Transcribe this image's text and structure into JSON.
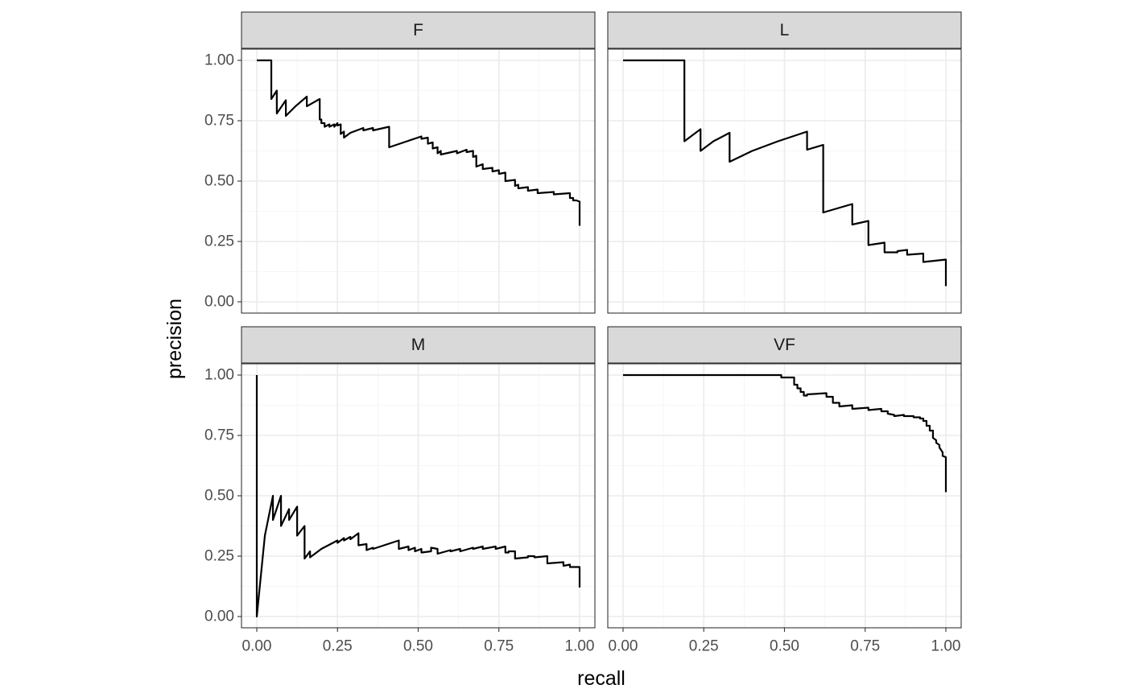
{
  "chart_data": {
    "type": "line",
    "xlabel": "recall",
    "ylabel": "precision",
    "xlim": [
      0,
      1
    ],
    "ylim": [
      0,
      1
    ],
    "x_ticks": [
      "0.00",
      "0.25",
      "0.50",
      "0.75",
      "1.00"
    ],
    "y_ticks": [
      "0.00",
      "0.25",
      "0.50",
      "0.75",
      "1.00"
    ],
    "grid": true,
    "facets": [
      {
        "label": "F",
        "points": [
          [
            0.0,
            1.0
          ],
          [
            0.045,
            1.0
          ],
          [
            0.045,
            0.84
          ],
          [
            0.062,
            0.875
          ],
          [
            0.062,
            0.78
          ],
          [
            0.09,
            0.835
          ],
          [
            0.09,
            0.77
          ],
          [
            0.12,
            0.81
          ],
          [
            0.155,
            0.85
          ],
          [
            0.155,
            0.81
          ],
          [
            0.195,
            0.84
          ],
          [
            0.195,
            0.755
          ],
          [
            0.2,
            0.755
          ],
          [
            0.2,
            0.74
          ],
          [
            0.21,
            0.74
          ],
          [
            0.21,
            0.725
          ],
          [
            0.225,
            0.735
          ],
          [
            0.225,
            0.725
          ],
          [
            0.24,
            0.735
          ],
          [
            0.24,
            0.725
          ],
          [
            0.25,
            0.74
          ],
          [
            0.25,
            0.73
          ],
          [
            0.26,
            0.735
          ],
          [
            0.26,
            0.695
          ],
          [
            0.27,
            0.705
          ],
          [
            0.27,
            0.68
          ],
          [
            0.29,
            0.7
          ],
          [
            0.33,
            0.72
          ],
          [
            0.33,
            0.71
          ],
          [
            0.36,
            0.72
          ],
          [
            0.36,
            0.71
          ],
          [
            0.41,
            0.725
          ],
          [
            0.41,
            0.64
          ],
          [
            0.51,
            0.685
          ],
          [
            0.51,
            0.675
          ],
          [
            0.53,
            0.68
          ],
          [
            0.53,
            0.655
          ],
          [
            0.545,
            0.66
          ],
          [
            0.545,
            0.635
          ],
          [
            0.56,
            0.64
          ],
          [
            0.56,
            0.615
          ],
          [
            0.57,
            0.625
          ],
          [
            0.57,
            0.61
          ],
          [
            0.62,
            0.625
          ],
          [
            0.62,
            0.615
          ],
          [
            0.65,
            0.63
          ],
          [
            0.65,
            0.62
          ],
          [
            0.67,
            0.625
          ],
          [
            0.67,
            0.6
          ],
          [
            0.68,
            0.605
          ],
          [
            0.68,
            0.56
          ],
          [
            0.7,
            0.57
          ],
          [
            0.7,
            0.55
          ],
          [
            0.73,
            0.555
          ],
          [
            0.73,
            0.54
          ],
          [
            0.75,
            0.545
          ],
          [
            0.75,
            0.53
          ],
          [
            0.77,
            0.535
          ],
          [
            0.77,
            0.5
          ],
          [
            0.8,
            0.505
          ],
          [
            0.8,
            0.48
          ],
          [
            0.81,
            0.485
          ],
          [
            0.81,
            0.47
          ],
          [
            0.84,
            0.475
          ],
          [
            0.84,
            0.46
          ],
          [
            0.87,
            0.465
          ],
          [
            0.87,
            0.45
          ],
          [
            0.92,
            0.455
          ],
          [
            0.92,
            0.445
          ],
          [
            0.97,
            0.45
          ],
          [
            0.97,
            0.43
          ],
          [
            0.98,
            0.43
          ],
          [
            0.98,
            0.42
          ],
          [
            0.99,
            0.42
          ],
          [
            1.0,
            0.415
          ],
          [
            1.0,
            0.315
          ]
        ]
      },
      {
        "label": "L",
        "points": [
          [
            0.0,
            1.0
          ],
          [
            0.19,
            1.0
          ],
          [
            0.19,
            0.665
          ],
          [
            0.24,
            0.715
          ],
          [
            0.24,
            0.625
          ],
          [
            0.28,
            0.665
          ],
          [
            0.33,
            0.7
          ],
          [
            0.33,
            0.58
          ],
          [
            0.4,
            0.625
          ],
          [
            0.48,
            0.665
          ],
          [
            0.57,
            0.705
          ],
          [
            0.57,
            0.63
          ],
          [
            0.62,
            0.65
          ],
          [
            0.62,
            0.37
          ],
          [
            0.71,
            0.405
          ],
          [
            0.71,
            0.32
          ],
          [
            0.76,
            0.335
          ],
          [
            0.76,
            0.235
          ],
          [
            0.81,
            0.245
          ],
          [
            0.81,
            0.205
          ],
          [
            0.85,
            0.205
          ],
          [
            0.85,
            0.21
          ],
          [
            0.88,
            0.215
          ],
          [
            0.88,
            0.195
          ],
          [
            0.93,
            0.2
          ],
          [
            0.93,
            0.165
          ],
          [
            1.0,
            0.175
          ],
          [
            1.0,
            0.065
          ]
        ]
      },
      {
        "label": "M",
        "points": [
          [
            0.0,
            1.0
          ],
          [
            0.0,
            0.0
          ],
          [
            0.025,
            0.335
          ],
          [
            0.05,
            0.5
          ],
          [
            0.05,
            0.4
          ],
          [
            0.075,
            0.5
          ],
          [
            0.075,
            0.375
          ],
          [
            0.1,
            0.445
          ],
          [
            0.1,
            0.4
          ],
          [
            0.125,
            0.455
          ],
          [
            0.125,
            0.335
          ],
          [
            0.148,
            0.375
          ],
          [
            0.148,
            0.24
          ],
          [
            0.165,
            0.27
          ],
          [
            0.165,
            0.245
          ],
          [
            0.2,
            0.28
          ],
          [
            0.25,
            0.315
          ],
          [
            0.25,
            0.305
          ],
          [
            0.27,
            0.325
          ],
          [
            0.27,
            0.315
          ],
          [
            0.29,
            0.33
          ],
          [
            0.29,
            0.32
          ],
          [
            0.315,
            0.345
          ],
          [
            0.315,
            0.295
          ],
          [
            0.34,
            0.3
          ],
          [
            0.34,
            0.275
          ],
          [
            0.36,
            0.285
          ],
          [
            0.36,
            0.28
          ],
          [
            0.44,
            0.315
          ],
          [
            0.44,
            0.28
          ],
          [
            0.47,
            0.29
          ],
          [
            0.47,
            0.275
          ],
          [
            0.49,
            0.285
          ],
          [
            0.49,
            0.27
          ],
          [
            0.51,
            0.28
          ],
          [
            0.51,
            0.265
          ],
          [
            0.54,
            0.27
          ],
          [
            0.54,
            0.285
          ],
          [
            0.56,
            0.28
          ],
          [
            0.56,
            0.26
          ],
          [
            0.6,
            0.275
          ],
          [
            0.6,
            0.27
          ],
          [
            0.63,
            0.28
          ],
          [
            0.63,
            0.27
          ],
          [
            0.67,
            0.285
          ],
          [
            0.67,
            0.28
          ],
          [
            0.7,
            0.29
          ],
          [
            0.7,
            0.28
          ],
          [
            0.74,
            0.29
          ],
          [
            0.74,
            0.28
          ],
          [
            0.77,
            0.29
          ],
          [
            0.77,
            0.265
          ],
          [
            0.78,
            0.265
          ],
          [
            0.78,
            0.27
          ],
          [
            0.8,
            0.27
          ],
          [
            0.8,
            0.24
          ],
          [
            0.84,
            0.245
          ],
          [
            0.84,
            0.25
          ],
          [
            0.86,
            0.25
          ],
          [
            0.86,
            0.245
          ],
          [
            0.9,
            0.25
          ],
          [
            0.9,
            0.22
          ],
          [
            0.95,
            0.225
          ],
          [
            0.95,
            0.21
          ],
          [
            0.97,
            0.215
          ],
          [
            0.97,
            0.205
          ],
          [
            1.0,
            0.205
          ],
          [
            1.0,
            0.12
          ]
        ]
      },
      {
        "label": "VF",
        "points": [
          [
            0.0,
            1.0
          ],
          [
            0.49,
            1.0
          ],
          [
            0.49,
            0.99
          ],
          [
            0.53,
            0.99
          ],
          [
            0.53,
            0.96
          ],
          [
            0.54,
            0.96
          ],
          [
            0.54,
            0.945
          ],
          [
            0.55,
            0.945
          ],
          [
            0.55,
            0.93
          ],
          [
            0.56,
            0.93
          ],
          [
            0.56,
            0.915
          ],
          [
            0.57,
            0.915
          ],
          [
            0.57,
            0.92
          ],
          [
            0.63,
            0.925
          ],
          [
            0.63,
            0.91
          ],
          [
            0.65,
            0.91
          ],
          [
            0.65,
            0.885
          ],
          [
            0.67,
            0.885
          ],
          [
            0.67,
            0.87
          ],
          [
            0.71,
            0.875
          ],
          [
            0.71,
            0.86
          ],
          [
            0.76,
            0.865
          ],
          [
            0.76,
            0.855
          ],
          [
            0.8,
            0.86
          ],
          [
            0.8,
            0.85
          ],
          [
            0.82,
            0.85
          ],
          [
            0.82,
            0.84
          ],
          [
            0.84,
            0.835
          ],
          [
            0.84,
            0.83
          ],
          [
            0.87,
            0.835
          ],
          [
            0.87,
            0.83
          ],
          [
            0.9,
            0.83
          ],
          [
            0.9,
            0.825
          ],
          [
            0.92,
            0.825
          ],
          [
            0.92,
            0.82
          ],
          [
            0.93,
            0.82
          ],
          [
            0.93,
            0.81
          ],
          [
            0.94,
            0.81
          ],
          [
            0.94,
            0.79
          ],
          [
            0.95,
            0.79
          ],
          [
            0.95,
            0.77
          ],
          [
            0.96,
            0.77
          ],
          [
            0.96,
            0.74
          ],
          [
            0.97,
            0.73
          ],
          [
            0.97,
            0.72
          ],
          [
            0.98,
            0.71
          ],
          [
            0.98,
            0.7
          ],
          [
            0.99,
            0.68
          ],
          [
            0.99,
            0.665
          ],
          [
            1.0,
            0.66
          ],
          [
            1.0,
            0.515
          ]
        ]
      }
    ]
  }
}
